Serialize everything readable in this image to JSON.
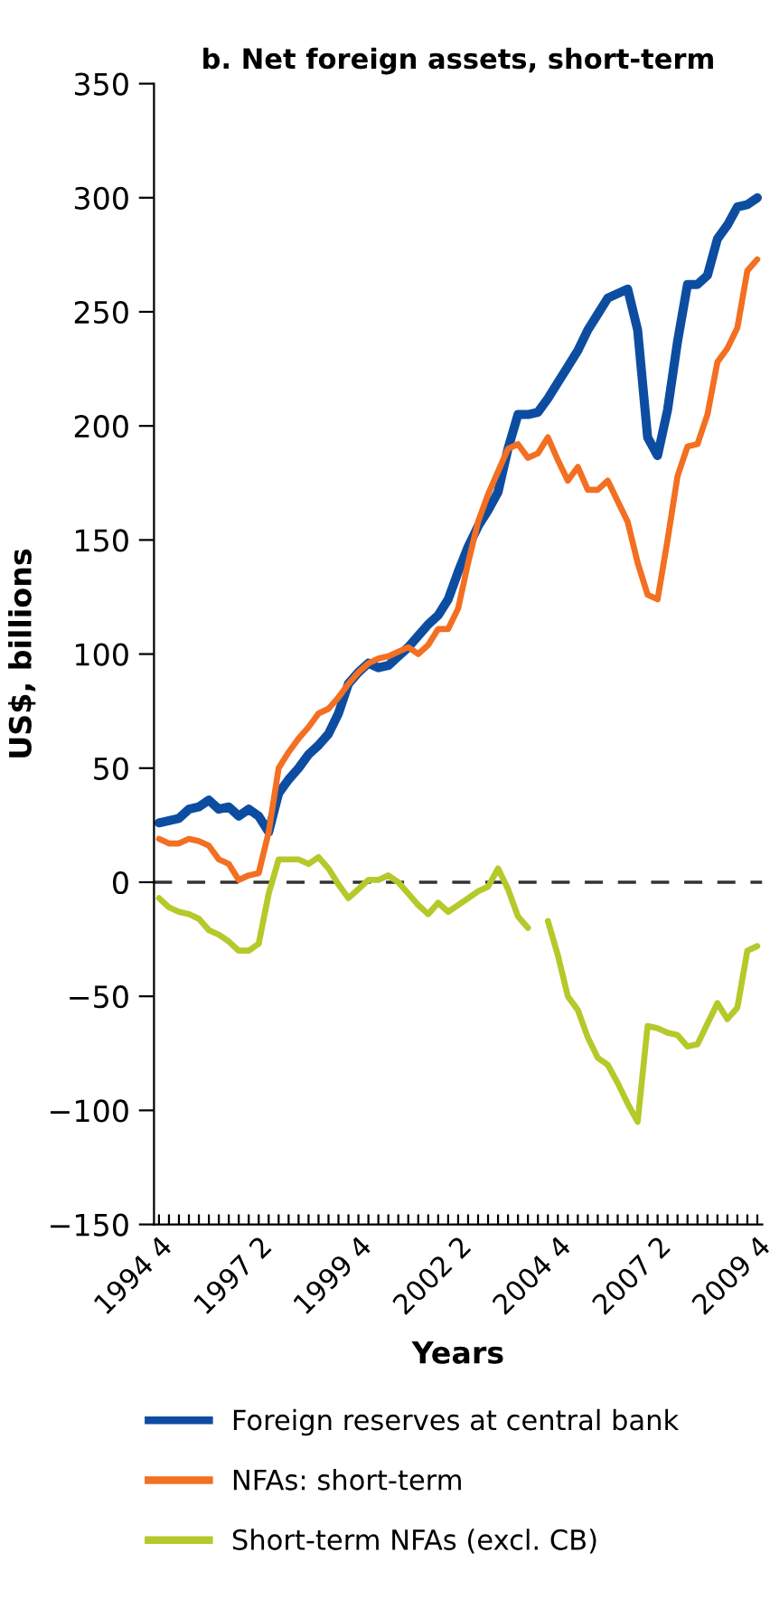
{
  "chart_data": {
    "type": "line",
    "title": "b. Net foreign assets, short-term",
    "xlabel": "Years",
    "ylabel": "US$, billions",
    "categories": [
      "1994 4",
      null,
      null,
      null,
      null,
      null,
      null,
      null,
      null,
      null,
      "1997 2",
      null,
      null,
      null,
      null,
      null,
      null,
      null,
      null,
      null,
      "1999 4",
      null,
      null,
      null,
      null,
      null,
      null,
      null,
      null,
      null,
      "2002 2",
      null,
      null,
      null,
      null,
      null,
      null,
      null,
      null,
      null,
      "2004 4",
      null,
      null,
      null,
      null,
      null,
      null,
      null,
      null,
      null,
      "2007 2",
      null,
      null,
      null,
      null,
      null,
      null,
      null,
      null,
      null,
      "2009 4"
    ],
    "series": [
      {
        "name": "Foreign reserves at central bank",
        "color": "#0d4da1",
        "values": [
          26,
          27,
          28,
          32,
          33,
          36,
          32,
          33,
          29,
          32,
          29,
          22,
          39,
          45,
          50,
          56,
          60,
          65,
          74,
          87,
          92,
          96,
          94,
          95,
          99,
          103,
          108,
          113,
          117,
          124,
          136,
          147,
          156,
          163,
          171,
          190,
          205,
          205,
          206,
          212,
          219,
          226,
          233,
          242,
          249,
          256,
          258,
          260,
          242,
          195,
          187,
          207,
          237,
          262,
          262,
          266,
          282,
          288,
          296,
          297,
          300
        ]
      },
      {
        "name": "NFAs: short-term",
        "color": "#f36f21",
        "values": [
          19,
          17,
          17,
          19,
          18,
          16,
          10,
          8,
          1,
          3,
          4,
          22,
          50,
          57,
          63,
          68,
          74,
          76,
          81,
          87,
          92,
          96,
          98,
          99,
          101,
          103,
          100,
          104,
          111,
          111,
          120,
          140,
          158,
          170,
          180,
          190,
          192,
          186,
          188,
          195,
          185,
          176,
          182,
          172,
          172,
          176,
          167,
          158,
          140,
          126,
          124,
          150,
          178,
          191,
          192,
          205,
          228,
          234,
          243,
          268,
          273
        ]
      },
      {
        "name": "Short-term NFAs (excl. CB)",
        "color": "#b5c92a",
        "values": [
          -7,
          -11,
          -13,
          -14,
          -16,
          -21,
          -23,
          -26,
          -30,
          -30,
          -27,
          -5,
          10,
          10,
          10,
          8,
          11,
          6,
          -1,
          -7,
          -3,
          1,
          1,
          3,
          0,
          -5,
          -10,
          -14,
          -9,
          -13,
          -10,
          -7,
          -4,
          -2,
          6,
          -3,
          -15,
          -20,
          null,
          -17,
          -32,
          -50,
          -56,
          -68,
          -77,
          -80,
          -88,
          -97,
          -105,
          -63,
          -64,
          -66,
          -67,
          -72,
          -71,
          -62,
          -53,
          -60,
          -55,
          -30,
          -28
        ]
      }
    ],
    "ylim": [
      -150,
      350
    ],
    "yticks": [
      {
        "value": -150,
        "label": "−150"
      },
      {
        "value": -100,
        "label": "−100"
      },
      {
        "value": -50,
        "label": "−50"
      },
      0,
      50,
      100,
      150,
      200,
      250,
      300,
      350
    ],
    "ref_lines": [
      {
        "axis": "y",
        "value": 0,
        "color": "#333333",
        "line_style": "dashed"
      }
    ],
    "grid": false,
    "legend": "bottom",
    "marker": "none",
    "line_style": "solid"
  }
}
